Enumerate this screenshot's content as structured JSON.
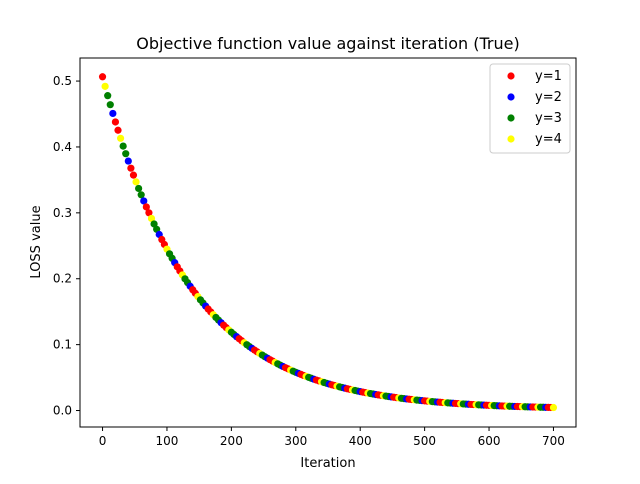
{
  "chart_data": {
    "type": "scatter",
    "title": "Objective function value against iteration (True)",
    "xlabel": "Iteration",
    "ylabel": "LOSS value",
    "xlim": [
      -35,
      735
    ],
    "ylim": [
      -0.025,
      0.535
    ],
    "xticks": [
      0,
      100,
      200,
      300,
      400,
      500,
      600,
      700
    ],
    "yticks": [
      0.0,
      0.1,
      0.2,
      0.3,
      0.4,
      0.5
    ],
    "ytick_labels": [
      "0.0",
      "0.1",
      "0.2",
      "0.3",
      "0.4",
      "0.5"
    ],
    "grid": false,
    "legend_position": "top-right",
    "curve": {
      "y0": 0.505,
      "decay_per_iteration": 0.0073,
      "x_max": 700,
      "step": 4
    },
    "series": [
      {
        "name": "y=1",
        "color": "#ff0000",
        "offset": 0
      },
      {
        "name": "y=2",
        "color": "#0000ff",
        "offset": 1
      },
      {
        "name": "y=3",
        "color": "#008000",
        "offset": 2
      },
      {
        "name": "y=4",
        "color": "#ffff00",
        "offset": 3
      }
    ]
  }
}
